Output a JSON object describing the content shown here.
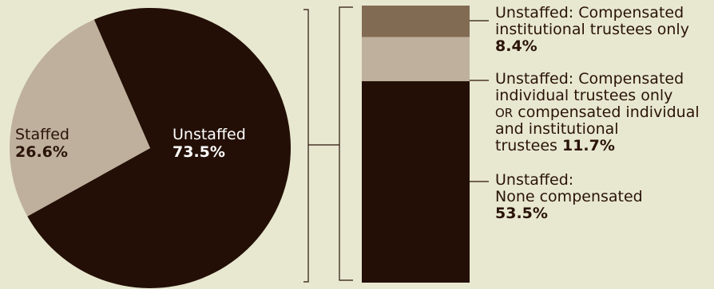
{
  "chart_data": [
    {
      "type": "pie",
      "title": "",
      "slices": [
        {
          "label": "Unstaffed",
          "value": 73.5,
          "value_label": "73.5%",
          "color": "#230f06"
        },
        {
          "label": "Staffed",
          "value": 26.6,
          "value_label": "26.6%",
          "color": "#bfb09d"
        }
      ]
    },
    {
      "type": "bar",
      "stacked": true,
      "title": "",
      "ylim": [
        0,
        73.6
      ],
      "segments": [
        {
          "label_lines": [
            "Unstaffed: Compensated",
            "institutional trustees only"
          ],
          "value": 8.4,
          "value_label": "8.4%",
          "color": "#826b53"
        },
        {
          "label_lines": [
            "Unstaffed: Compensated",
            "individual trustees only",
            "or compensated individual",
            "and institutional",
            "trustees"
          ],
          "value": 11.7,
          "value_label": "11.7%",
          "color": "#bfb09d"
        },
        {
          "label_lines": [
            "Unstaffed:",
            "None compensated"
          ],
          "value": 53.5,
          "value_label": "53.5%",
          "color": "#230f06"
        }
      ]
    }
  ]
}
